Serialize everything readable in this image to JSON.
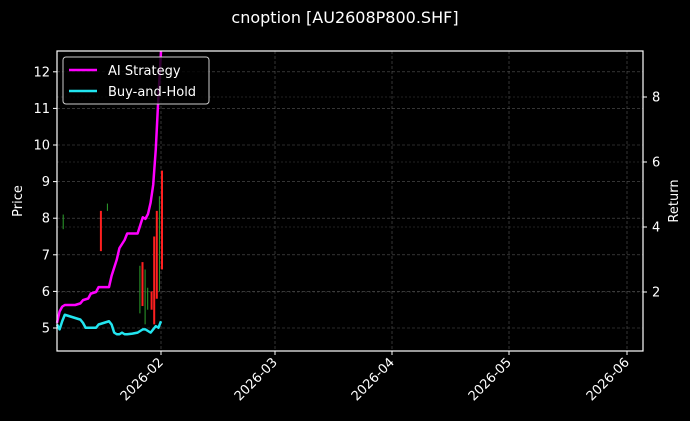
{
  "chart_data": {
    "type": "line",
    "title": "cnoption [AU2608P800.SHF]",
    "xlabel": "",
    "ylabel": "Price",
    "ylabel_right": "Return",
    "ylim": [
      4.4,
      12.6
    ],
    "ylim_right": [
      0.25,
      9.4
    ],
    "yticks": [
      5,
      6,
      7,
      8,
      9,
      10,
      11,
      12
    ],
    "yticks_right": [
      2,
      4,
      6,
      8
    ],
    "xticks": [
      "2026-02",
      "2026-03",
      "2026-04",
      "2026-05",
      "2026-06"
    ],
    "grid": true,
    "legend_position": "upper left",
    "background": "#000000",
    "series": [
      {
        "name": "AI Strategy",
        "axis": "right",
        "color": "#ff00ff",
        "points": [
          [
            0,
            1.05
          ],
          [
            2,
            1.4
          ],
          [
            4,
            1.55
          ],
          [
            6,
            1.6
          ],
          [
            10,
            1.6
          ],
          [
            14,
            1.6
          ],
          [
            18,
            1.65
          ],
          [
            20,
            1.75
          ],
          [
            24,
            1.8
          ],
          [
            26,
            1.95
          ],
          [
            30,
            2.0
          ],
          [
            32,
            2.15
          ],
          [
            36,
            2.15
          ],
          [
            40,
            2.15
          ],
          [
            42,
            2.5
          ],
          [
            46,
            3.0
          ],
          [
            48,
            3.35
          ],
          [
            52,
            3.6
          ],
          [
            54,
            3.8
          ],
          [
            58,
            3.8
          ],
          [
            62,
            3.8
          ],
          [
            64,
            4.05
          ],
          [
            66,
            4.3
          ],
          [
            68,
            4.25
          ],
          [
            70,
            4.4
          ],
          [
            72,
            4.75
          ],
          [
            74,
            5.3
          ],
          [
            76,
            6.4
          ],
          [
            78,
            8.0
          ],
          [
            80,
            9.4
          ]
        ]
      },
      {
        "name": "Buy-and-Hold",
        "axis": "right",
        "color": "#22e5f0",
        "points": [
          [
            0,
            1.0
          ],
          [
            2,
            0.85
          ],
          [
            4,
            1.1
          ],
          [
            6,
            1.3
          ],
          [
            10,
            1.25
          ],
          [
            14,
            1.2
          ],
          [
            18,
            1.15
          ],
          [
            20,
            1.05
          ],
          [
            22,
            0.9
          ],
          [
            26,
            0.9
          ],
          [
            30,
            0.9
          ],
          [
            32,
            1.0
          ],
          [
            36,
            1.05
          ],
          [
            40,
            1.1
          ],
          [
            42,
            1.0
          ],
          [
            44,
            0.75
          ],
          [
            46,
            0.7
          ],
          [
            48,
            0.7
          ],
          [
            50,
            0.75
          ],
          [
            52,
            0.7
          ],
          [
            54,
            0.7
          ],
          [
            58,
            0.72
          ],
          [
            62,
            0.75
          ],
          [
            64,
            0.8
          ],
          [
            66,
            0.85
          ],
          [
            68,
            0.85
          ],
          [
            70,
            0.8
          ],
          [
            72,
            0.75
          ],
          [
            74,
            0.85
          ],
          [
            76,
            0.95
          ],
          [
            78,
            0.9
          ],
          [
            80,
            1.1
          ]
        ]
      }
    ],
    "candles": {
      "axis": "left",
      "up_color": "#2ca02c",
      "down_color": "#ff2020",
      "bars": [
        {
          "x": 4,
          "low": 7.7,
          "high": 8.1,
          "dir": "up"
        },
        {
          "x": 33,
          "low": 7.1,
          "high": 8.2,
          "dir": "down"
        },
        {
          "x": 38,
          "low": 8.2,
          "high": 8.4,
          "dir": "up"
        },
        {
          "x": 63,
          "low": 5.4,
          "high": 6.7,
          "dir": "up"
        },
        {
          "x": 65,
          "low": 5.6,
          "high": 6.8,
          "dir": "down"
        },
        {
          "x": 67,
          "low": 5.1,
          "high": 6.6,
          "dir": "up"
        },
        {
          "x": 69,
          "low": 5.5,
          "high": 6.1,
          "dir": "up"
        },
        {
          "x": 72,
          "low": 5.5,
          "high": 6.0,
          "dir": "down"
        },
        {
          "x": 74,
          "low": 5.1,
          "high": 7.5,
          "dir": "down"
        },
        {
          "x": 76,
          "low": 5.8,
          "high": 8.2,
          "dir": "down"
        },
        {
          "x": 78,
          "low": 6.0,
          "high": 8.6,
          "dir": "up"
        },
        {
          "x": 80,
          "low": 6.6,
          "high": 9.3,
          "dir": "down"
        }
      ]
    }
  },
  "title": "cnoption [AU2608P800.SHF]",
  "axes": {
    "y_left_label": "Price",
    "y_right_label": "Return",
    "y_left_ticks": [
      "5",
      "6",
      "7",
      "8",
      "9",
      "10",
      "11",
      "12"
    ],
    "y_right_ticks": [
      "2",
      "4",
      "6",
      "8"
    ],
    "x_ticks": [
      "2026-02",
      "2026-03",
      "2026-04",
      "2026-05",
      "2026-06"
    ]
  },
  "legend": {
    "items": [
      {
        "label": "AI Strategy",
        "color": "#ff00ff"
      },
      {
        "label": "Buy-and-Hold",
        "color": "#22e5f0"
      }
    ]
  }
}
